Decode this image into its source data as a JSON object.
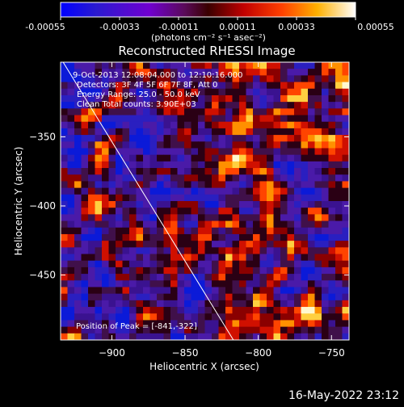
{
  "chart_data": {
    "type": "heatmap",
    "title": "Reconstructed RHESSI Image",
    "xlabel": "Heliocentric X (arcsec)",
    "ylabel": "Heliocentric Y (arcsec)",
    "xlim": [
      -935,
      -738
    ],
    "ylim": [
      -497,
      -296
    ],
    "x_ticks": [
      -900,
      -850,
      -800,
      -750
    ],
    "y_ticks": [
      -350,
      -400,
      -450
    ],
    "colorbar": {
      "min": -0.00055,
      "max": 0.00055,
      "tick_values": [
        -0.00055,
        -0.00033,
        -0.00011,
        0.00011,
        0.00033,
        0.00055
      ],
      "tick_labels": [
        "-0.00055",
        "-0.00033",
        "-0.00011",
        "0.00011",
        "0.00033",
        "0.00055"
      ],
      "unit_label": "(photons cm⁻² s⁻¹ asec⁻²)",
      "colormap": [
        "#0000ff",
        "#4a00ff",
        "#8800cc",
        "#b00000",
        "#ff0000",
        "#ff8800",
        "#ffdd00",
        "#ffffff"
      ]
    },
    "annotations": [
      "9-Oct-2013 12:08:04.000 to 12:10:16.000",
      "Detectors: 3F 4F 5F 6F 7F 8F, Att 0",
      "Energy Range: 25.0 - 50.0 keV",
      "Clean    Total counts: 3.90E+03"
    ],
    "peak_text": "Position of Peak = [-841,-322]",
    "limb_line": [
      [
        -935,
        -293
      ],
      [
        -817,
        -497
      ]
    ],
    "grid": false
  },
  "footer": {
    "timestamp": "16-May-2022 23:12"
  }
}
